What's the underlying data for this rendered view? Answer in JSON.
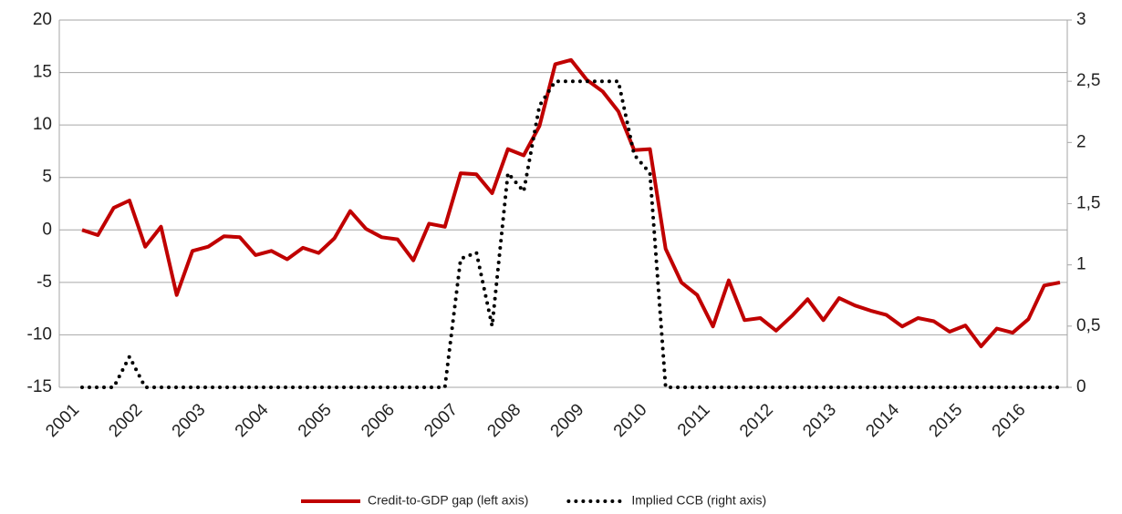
{
  "chart_data": {
    "type": "line",
    "categories": [
      "2001",
      null,
      null,
      null,
      "2002",
      null,
      null,
      null,
      "2003",
      null,
      null,
      null,
      "2004",
      null,
      null,
      null,
      "2005",
      null,
      null,
      null,
      "2006",
      null,
      null,
      null,
      "2007",
      null,
      null,
      null,
      "2008",
      null,
      null,
      null,
      "2009",
      null,
      null,
      null,
      "2010",
      null,
      null,
      null,
      "2011",
      null,
      null,
      null,
      "2012",
      null,
      null,
      null,
      "2013",
      null,
      null,
      null,
      "2014",
      null,
      null,
      null,
      "2015",
      null,
      null,
      null,
      "2016",
      null,
      null
    ],
    "series": [
      {
        "name": "Credit-to-GDP gap (left axis)",
        "color": "#c00000",
        "axis": "y",
        "values": [
          0,
          -0.5,
          2.1,
          2.8,
          -1.6,
          0.3,
          -6.2,
          -2,
          -1.6,
          -0.6,
          -0.7,
          -2.4,
          -2,
          -2.8,
          -1.7,
          -2.2,
          -0.8,
          1.8,
          0.1,
          -0.7,
          -0.9,
          -2.9,
          0.6,
          0.3,
          5.4,
          5.3,
          3.5,
          7.7,
          7.1,
          9.9,
          15.8,
          16.2,
          14.3,
          13.2,
          11.3,
          7.6,
          7.7,
          -1.8,
          -5,
          -6.2,
          -9.2,
          -4.8,
          -8.6,
          -8.4,
          -9.6,
          -8.2,
          -6.6,
          -8.6,
          -6.5,
          -7.2,
          -7.7,
          -8.1,
          -9.2,
          -8.4,
          -8.7,
          -9.7,
          -9.1,
          -11.1,
          -9.4,
          -9.8,
          -8.5,
          -5.3,
          -5
        ]
      },
      {
        "name": "Implied CCB (right axis)",
        "color": "#000000",
        "axis": "y2",
        "values": [
          0,
          0,
          0,
          0.25,
          0,
          0,
          0,
          0,
          0,
          0,
          0,
          0,
          0,
          0,
          0,
          0,
          0,
          0,
          0,
          0,
          0,
          0,
          0,
          0,
          1.05,
          1.1,
          0.5,
          1.75,
          1.6,
          2.3,
          2.5,
          2.5,
          2.5,
          2.5,
          2.5,
          1.9,
          1.75,
          0,
          0,
          0,
          0,
          0,
          0,
          0,
          0,
          0,
          0,
          0,
          0,
          0,
          0,
          0,
          0,
          0,
          0,
          0,
          0,
          0,
          0,
          0,
          0,
          0,
          0
        ]
      }
    ],
    "ylim": [
      -15,
      20
    ],
    "yticks": [
      -15,
      -10,
      -5,
      0,
      5,
      10,
      15,
      20
    ],
    "y2lim": [
      0,
      3
    ],
    "y2ticks": [
      0,
      {
        "value": 0.5,
        "label": "0,5"
      },
      1,
      {
        "value": 1.5,
        "label": "1,5"
      },
      2,
      {
        "value": 2.5,
        "label": "2,5"
      },
      3
    ],
    "grid": true,
    "legend": "bottom"
  }
}
